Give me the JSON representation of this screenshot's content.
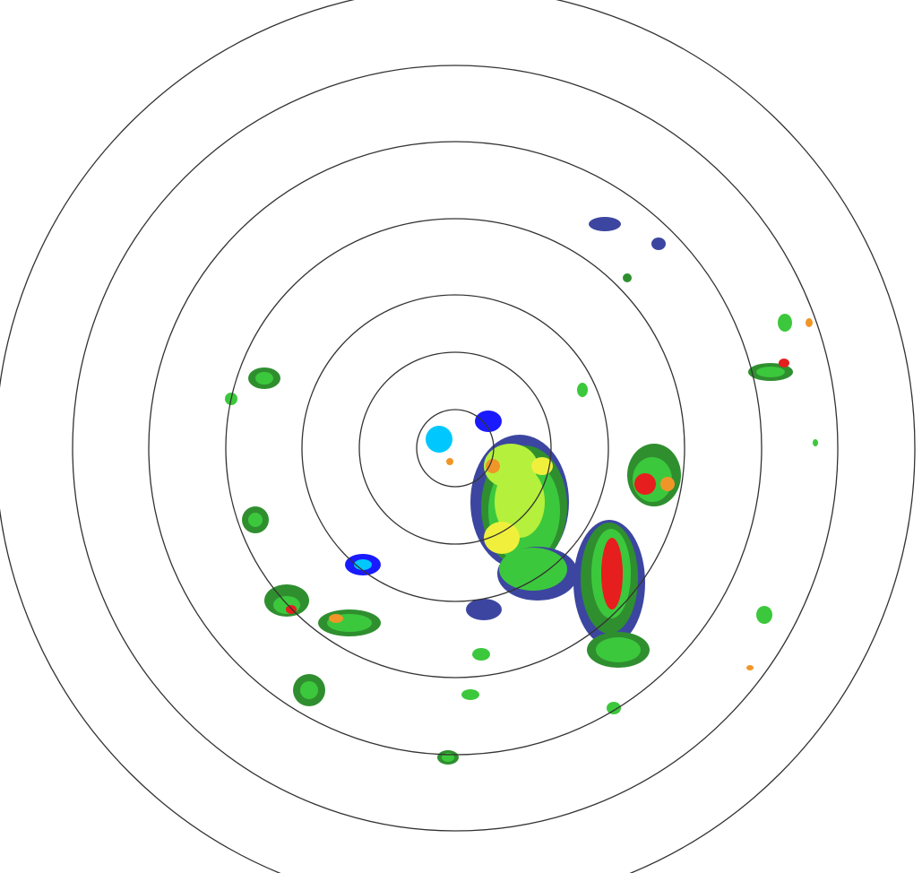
{
  "radar": {
    "range_ring_count": 7,
    "ring_color": "#333333",
    "reflectivity_colors": {
      "very_light": "#00c8ff",
      "light_blue": "#1a1aff",
      "dark_blue": "#3c46a0",
      "dark_green": "#2f8f2f",
      "green": "#3cc83c",
      "light_green": "#b4f03c",
      "yellow": "#f0f03c",
      "orange": "#f09628",
      "red": "#e61e1e"
    }
  }
}
